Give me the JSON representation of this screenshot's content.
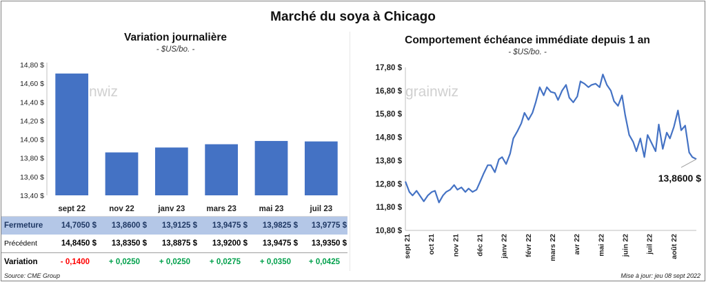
{
  "title": "Marché du soya à Chicago",
  "left": {
    "subtitle": "Variation journalière",
    "units": "- $US/bo. -",
    "watermark": "grainwiz"
  },
  "right": {
    "subtitle": "Comportement échéance immédiate depuis 1 an",
    "units": "- $US/bo. -",
    "watermark": "grainwiz",
    "last_label": "13,8600 $"
  },
  "table": {
    "row_labels": {
      "fermeture": "Fermeture",
      "precedent": "Précédent",
      "variation": "Variation"
    },
    "fermeture": [
      "14,7050 $",
      "13,8600 $",
      "13,9125 $",
      "13,9475 $",
      "13,9825 $",
      "13,9775 $"
    ],
    "precedent": [
      "14,8450 $",
      "13,8350 $",
      "13,8875 $",
      "13,9200 $",
      "13,9475 $",
      "13,9350 $"
    ],
    "variation": [
      "- 0,1400",
      "+ 0,0250",
      "+ 0,0250",
      "+ 0,0275",
      "+ 0,0350",
      "+ 0,0425"
    ]
  },
  "footer": {
    "source": "Source: CME Group",
    "updated": "Mise à jour: jeu 08 sept 2022"
  },
  "colors": {
    "bar": "#4472c4",
    "line": "#4472c4",
    "positive": "#00a04b",
    "negative": "#ff0000",
    "highlight_row": "#b4c7e7"
  },
  "chart_data": [
    {
      "type": "bar",
      "title": "Variation journalière",
      "subtitle": "- $US/bo. -",
      "categories": [
        "sept 22",
        "nov 22",
        "janv 23",
        "mars 23",
        "mai 23",
        "juil 23"
      ],
      "values": [
        14.705,
        13.86,
        13.9125,
        13.9475,
        13.9825,
        13.9775
      ],
      "ylim": [
        13.4,
        14.8
      ],
      "yticks": [
        13.4,
        13.6,
        13.8,
        14.0,
        14.2,
        14.4,
        14.6,
        14.8
      ],
      "ytick_labels": [
        "13,40 $",
        "13,60 $",
        "13,80 $",
        "14,00 $",
        "14,20 $",
        "14,40 $",
        "14,60 $",
        "14,80 $"
      ],
      "grid": false,
      "legend": "none"
    },
    {
      "type": "line",
      "title": "Comportement échéance immédiate depuis 1 an",
      "subtitle": "- $US/bo. -",
      "ylim": [
        10.8,
        17.8
      ],
      "yticks": [
        10.8,
        11.8,
        12.8,
        13.8,
        14.8,
        15.8,
        16.8,
        17.8
      ],
      "ytick_labels": [
        "10,80 $",
        "11,80 $",
        "12,80 $",
        "13,80 $",
        "14,80 $",
        "15,80 $",
        "16,80 $",
        "17,80 $"
      ],
      "xtick_labels": [
        "sept 21",
        "oct 21",
        "nov 21",
        "déc 21",
        "janv 22",
        "févr 22",
        "mars 22",
        "avr 22",
        "mai 22",
        "juin 22",
        "juil 22",
        "août 22"
      ],
      "grid": false,
      "legend": "none",
      "last_value": 13.86,
      "series": [
        {
          "x": [
            "2021-09-08",
            "2021-09-13",
            "2021-09-17",
            "2021-09-22",
            "2021-09-27",
            "2021-10-01",
            "2021-10-06",
            "2021-10-11",
            "2021-10-15",
            "2021-10-20",
            "2021-10-25",
            "2021-10-29",
            "2021-11-03",
            "2021-11-08",
            "2021-11-12",
            "2021-11-17",
            "2021-11-22",
            "2021-11-26",
            "2021-12-01",
            "2021-12-06",
            "2021-12-10",
            "2021-12-15",
            "2021-12-20",
            "2021-12-24",
            "2021-12-29",
            "2022-01-03",
            "2022-01-07",
            "2022-01-12",
            "2022-01-17",
            "2022-01-21",
            "2022-01-26",
            "2022-01-31",
            "2022-02-04",
            "2022-02-09",
            "2022-02-14",
            "2022-02-18",
            "2022-02-23",
            "2022-02-28",
            "2022-03-04",
            "2022-03-09",
            "2022-03-14",
            "2022-03-18",
            "2022-03-23",
            "2022-03-28",
            "2022-04-01",
            "2022-04-06",
            "2022-04-11",
            "2022-04-15",
            "2022-04-20",
            "2022-04-25",
            "2022-04-29",
            "2022-05-04",
            "2022-05-09",
            "2022-05-13",
            "2022-05-18",
            "2022-05-23",
            "2022-05-27",
            "2022-06-01",
            "2022-06-06",
            "2022-06-10",
            "2022-06-15",
            "2022-06-20",
            "2022-06-24",
            "2022-06-29",
            "2022-07-04",
            "2022-07-08",
            "2022-07-13",
            "2022-07-18",
            "2022-07-22",
            "2022-07-27",
            "2022-08-01",
            "2022-08-05",
            "2022-08-10",
            "2022-08-15",
            "2022-08-19",
            "2022-08-24",
            "2022-08-29",
            "2022-09-02",
            "2022-09-07"
          ],
          "y": [
            12.9,
            12.45,
            12.3,
            12.5,
            12.25,
            12.05,
            12.3,
            12.45,
            12.5,
            12.0,
            12.3,
            12.45,
            12.55,
            12.75,
            12.55,
            12.65,
            12.45,
            12.6,
            12.45,
            12.55,
            12.85,
            13.25,
            13.6,
            13.6,
            13.3,
            13.85,
            13.95,
            13.65,
            14.1,
            14.75,
            15.05,
            15.4,
            15.85,
            15.55,
            15.85,
            16.3,
            16.95,
            16.6,
            16.95,
            16.75,
            16.7,
            16.4,
            16.8,
            17.05,
            16.5,
            16.3,
            16.55,
            17.2,
            17.1,
            16.95,
            17.05,
            17.1,
            16.95,
            17.5,
            17.05,
            16.8,
            16.35,
            16.15,
            16.6,
            15.75,
            14.9,
            14.6,
            14.2,
            14.75,
            13.95,
            14.9,
            14.55,
            14.2,
            15.35,
            14.3,
            15.0,
            14.75,
            15.25,
            15.95,
            15.1,
            15.3,
            14.15,
            13.95,
            13.86
          ]
        }
      ]
    }
  ]
}
